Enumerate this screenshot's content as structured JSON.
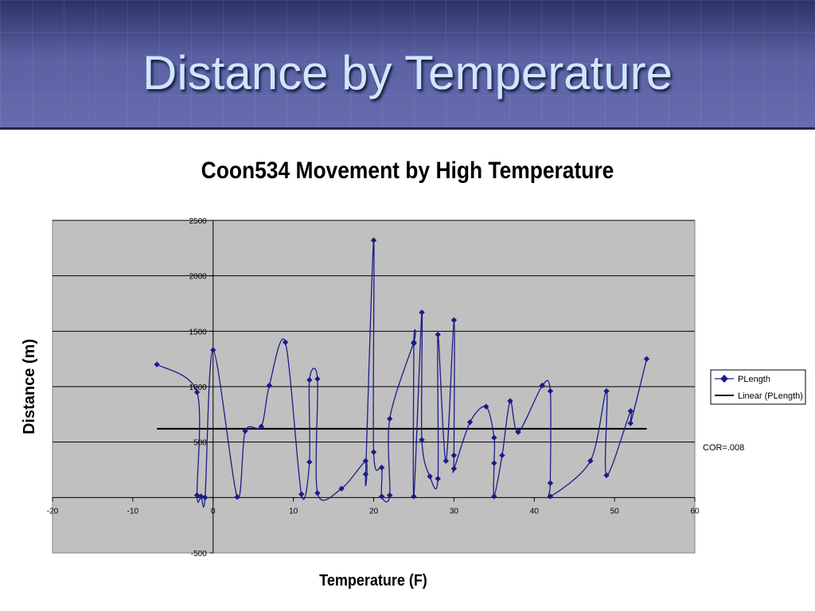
{
  "slide": {
    "title": "Distance by Temperature"
  },
  "chart_data": {
    "type": "scatter",
    "title": "Coon534 Movement by High Temperature",
    "xlabel": "Temperature (F)",
    "ylabel": "Distance (m)",
    "xlim": [
      -20,
      60
    ],
    "ylim": [
      -500,
      2500
    ],
    "x_ticks": [
      -20,
      -10,
      0,
      10,
      20,
      30,
      40,
      50,
      60
    ],
    "y_ticks": [
      -500,
      0,
      500,
      1000,
      1500,
      2000,
      2500
    ],
    "y_tick_labels": [
      "-500",
      "",
      "500",
      "1000",
      "1500",
      "2000",
      "2500"
    ],
    "grid": "horizontal",
    "legend_position": "right",
    "annotation": "COR=.008",
    "series": [
      {
        "name": "PLength",
        "kind": "smoothed-line-markers",
        "color": "#1b1b8a",
        "points": [
          [
            -7,
            1200
          ],
          [
            -2,
            950
          ],
          [
            -2,
            20
          ],
          [
            -1.5,
            10
          ],
          [
            -1,
            0
          ],
          [
            0,
            1330
          ],
          [
            3,
            5
          ],
          [
            4,
            600
          ],
          [
            6,
            640
          ],
          [
            7,
            1010
          ],
          [
            9,
            1400
          ],
          [
            11,
            30
          ],
          [
            12,
            320
          ],
          [
            12,
            1060
          ],
          [
            13,
            1070
          ],
          [
            13,
            40
          ],
          [
            16,
            80
          ],
          [
            19,
            330
          ],
          [
            19,
            210
          ],
          [
            20,
            2320
          ],
          [
            20,
            410
          ],
          [
            21,
            270
          ],
          [
            21,
            10
          ],
          [
            22,
            20
          ],
          [
            22,
            710
          ],
          [
            25,
            1400
          ],
          [
            25,
            1390
          ],
          [
            25,
            10
          ],
          [
            26,
            1670
          ],
          [
            26,
            520
          ],
          [
            27,
            190
          ],
          [
            28,
            170
          ],
          [
            28,
            1470
          ],
          [
            29,
            330
          ],
          [
            30,
            1600
          ],
          [
            30,
            380
          ],
          [
            30,
            260
          ],
          [
            32,
            680
          ],
          [
            34,
            820
          ],
          [
            35,
            540
          ],
          [
            35,
            310
          ],
          [
            35,
            10
          ],
          [
            36,
            380
          ],
          [
            37,
            870
          ],
          [
            38,
            590
          ],
          [
            41,
            1010
          ],
          [
            42,
            960
          ],
          [
            42,
            130
          ],
          [
            42,
            10
          ],
          [
            47,
            330
          ],
          [
            49,
            960
          ],
          [
            49,
            200
          ],
          [
            52,
            780
          ],
          [
            52,
            670
          ],
          [
            54,
            1250
          ]
        ]
      },
      {
        "name": "Linear (PLength)",
        "kind": "trendline",
        "color": "#000000",
        "points": [
          [
            -7,
            620
          ],
          [
            54,
            620
          ]
        ]
      }
    ]
  }
}
